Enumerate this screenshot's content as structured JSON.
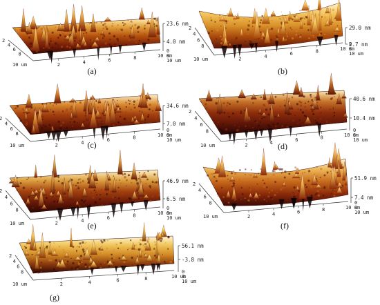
{
  "figure": {
    "panels": [
      {
        "id": "a",
        "caption": "(a)",
        "z_top": "23.6 nm",
        "z_mid": "4.0 nm",
        "x_ticks": [
          "2",
          "4",
          "6",
          "8"
        ],
        "x_end": "10 um",
        "y_ticks": [
          "2",
          "4",
          "6",
          "8"
        ],
        "y_end": "10 um",
        "y_right_ticks": [
          "0",
          "8",
          "10 um"
        ],
        "palette": [
          "#3a0a05",
          "#7a2008",
          "#b5520f",
          "#e2a23c",
          "#fff3c0"
        ]
      },
      {
        "id": "b",
        "caption": "(b)",
        "z_top": "29.0 nm",
        "z_mid": "2.7 nm",
        "x_ticks": [
          "2",
          "4",
          "6",
          "8"
        ],
        "x_end": "10 um",
        "y_ticks": [
          "2",
          "4",
          "6",
          "8"
        ],
        "y_end": "10 um",
        "y_right_ticks": [
          "0",
          "8",
          "10 um"
        ],
        "palette": [
          "#5a1408",
          "#a8480c",
          "#d9922a",
          "#f2c45a",
          "#fff6d0"
        ]
      },
      {
        "id": "c",
        "caption": "(c)",
        "z_top": "34.6 nm",
        "z_mid": "7.0 nm",
        "x_ticks": [
          "2",
          "4",
          "6",
          "8"
        ],
        "x_end": "10 um",
        "y_ticks": [
          "2",
          "4",
          "6",
          "8"
        ],
        "y_end": "10 um",
        "y_right_ticks": [
          "0",
          "8",
          "10 um"
        ],
        "palette": [
          "#2e0804",
          "#6e1c08",
          "#a3400e",
          "#d98a30",
          "#fff0c8"
        ]
      },
      {
        "id": "d",
        "caption": "(d)",
        "z_top": "40.6 nm",
        "z_mid": "10.4 nm",
        "x_ticks": [
          "2",
          "4",
          "6",
          "8"
        ],
        "x_end": "10 um",
        "y_ticks": [
          "2",
          "4",
          "6",
          "8"
        ],
        "y_end": "10 um",
        "y_right_ticks": [
          "0",
          "8",
          "10 um"
        ],
        "palette": [
          "#240604",
          "#5e1608",
          "#8e2e0c",
          "#c7742a",
          "#ffeeb8"
        ]
      },
      {
        "id": "e",
        "caption": "(e)",
        "z_top": "46.9 nm",
        "z_mid": "6.5 nm",
        "x_ticks": [
          "2",
          "4",
          "6",
          "8"
        ],
        "x_end": "10 um",
        "y_ticks": [
          "2",
          "4",
          "6",
          "8"
        ],
        "y_end": "10 um",
        "y_right_ticks": [
          "0",
          "8",
          "10 um"
        ],
        "palette": [
          "#2a0704",
          "#6a1a08",
          "#a4420f",
          "#dca040",
          "#fff4cc"
        ]
      },
      {
        "id": "f",
        "caption": "(f)",
        "z_top": "51.9 nm",
        "z_mid": "7.4 nm",
        "x_ticks": [
          "2",
          "4",
          "6",
          "8"
        ],
        "x_end": "10 um",
        "y_ticks": [
          "2",
          "4",
          "6",
          "8"
        ],
        "y_end": "10 um",
        "y_right_ticks": [
          "0",
          "8",
          "10 um"
        ],
        "palette": [
          "#3c0a06",
          "#8a2a0a",
          "#c4661a",
          "#eab050",
          "#fff6d8"
        ]
      },
      {
        "id": "g",
        "caption": "(g)",
        "z_top": "56.1 nm",
        "z_mid": "-3.8 nm",
        "x_ticks": [
          "2",
          "4",
          "6",
          "8"
        ],
        "x_end": "10 um",
        "y_ticks": [
          "2",
          "4",
          "6",
          "8"
        ],
        "y_end": "10 um",
        "y_right_ticks": [
          "0",
          "8",
          "10 um"
        ],
        "palette": [
          "#300806",
          "#8a3a0c",
          "#d28a26",
          "#f0c458",
          "#fff8dc"
        ]
      }
    ]
  }
}
